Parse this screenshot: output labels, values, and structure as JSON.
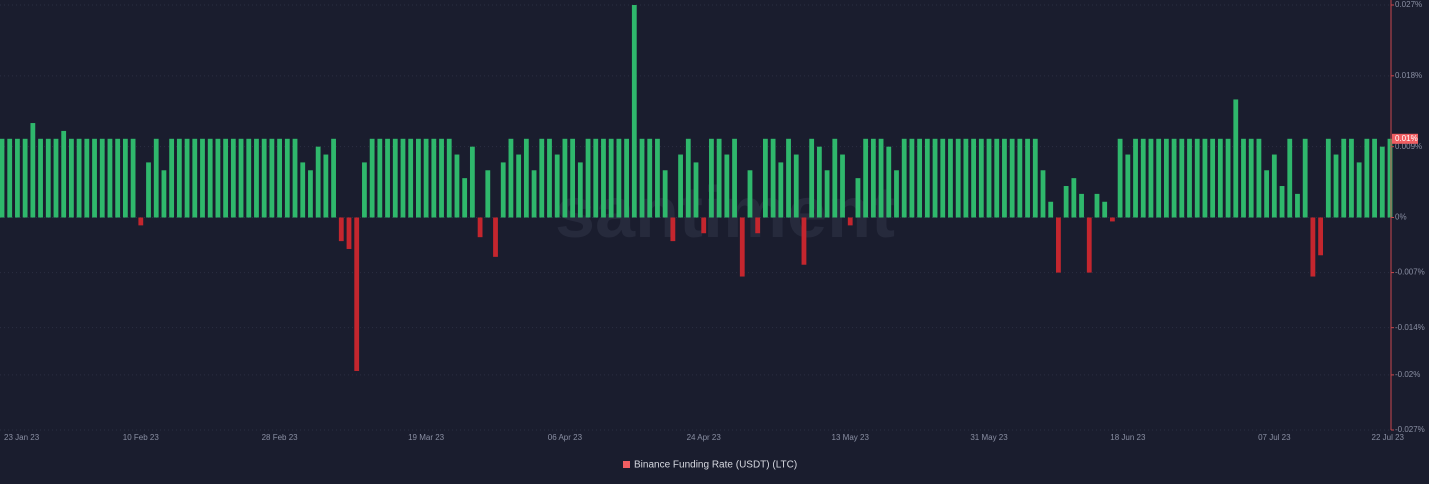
{
  "chart_data": {
    "type": "bar",
    "watermark": "santiment",
    "legend": "Binance Funding Rate (USDT) (LTC)",
    "legend_color": "#ef5e62",
    "positive_color": "#2fb86c",
    "negative_color": "#c4262e",
    "axis_color": "#c9484d",
    "grid": true,
    "current_value": {
      "value": 0.01,
      "label": "0.01%"
    },
    "ylim": [
      -0.027,
      0.027
    ],
    "yticks": [
      {
        "value": 0.027,
        "label": "0.027%"
      },
      {
        "value": 0.018,
        "label": "0.018%"
      },
      {
        "value": 0.009,
        "label": "0.009%"
      },
      {
        "value": 0,
        "label": "0%"
      },
      {
        "value": -0.007,
        "label": "-0.007%"
      },
      {
        "value": -0.014,
        "label": "-0.014%"
      },
      {
        "value": -0.02,
        "label": "-0.02%"
      },
      {
        "value": -0.027,
        "label": "-0.027%"
      }
    ],
    "categories": [
      "23 Jan 23",
      null,
      null,
      null,
      null,
      null,
      null,
      null,
      null,
      null,
      null,
      null,
      null,
      null,
      null,
      null,
      null,
      null,
      "10 Feb 23",
      null,
      null,
      null,
      null,
      null,
      null,
      null,
      null,
      null,
      null,
      null,
      null,
      null,
      null,
      null,
      null,
      null,
      "28 Feb 23",
      null,
      null,
      null,
      null,
      null,
      null,
      null,
      null,
      null,
      null,
      null,
      null,
      null,
      null,
      null,
      null,
      null,
      null,
      "19 Mar 23",
      null,
      null,
      null,
      null,
      null,
      null,
      null,
      null,
      null,
      null,
      null,
      null,
      null,
      null,
      null,
      null,
      null,
      "06 Apr 23",
      null,
      null,
      null,
      null,
      null,
      null,
      null,
      null,
      null,
      null,
      null,
      null,
      null,
      null,
      null,
      null,
      null,
      "24 Apr 23",
      null,
      null,
      null,
      null,
      null,
      null,
      null,
      null,
      null,
      null,
      null,
      null,
      null,
      null,
      null,
      null,
      null,
      null,
      "13 May 23",
      null,
      null,
      null,
      null,
      null,
      null,
      null,
      null,
      null,
      null,
      null,
      null,
      null,
      null,
      null,
      null,
      null,
      "31 May 23",
      null,
      null,
      null,
      null,
      null,
      null,
      null,
      null,
      null,
      null,
      null,
      null,
      null,
      null,
      null,
      null,
      null,
      "18 Jun 23",
      null,
      null,
      null,
      null,
      null,
      null,
      null,
      null,
      null,
      null,
      null,
      null,
      null,
      null,
      null,
      null,
      null,
      null,
      "07 Jul 23",
      null,
      null,
      null,
      null,
      null,
      null,
      null,
      null,
      null,
      null,
      null,
      null,
      null,
      null,
      "22 Jul 23"
    ],
    "values": [
      0.01,
      0.01,
      0.01,
      0.01,
      0.012,
      0.01,
      0.01,
      0.01,
      0.011,
      0.01,
      0.01,
      0.01,
      0.01,
      0.01,
      0.01,
      0.01,
      0.01,
      0.01,
      -0.001,
      0.007,
      0.01,
      0.006,
      0.01,
      0.01,
      0.01,
      0.01,
      0.01,
      0.01,
      0.01,
      0.01,
      0.01,
      0.01,
      0.01,
      0.01,
      0.01,
      0.01,
      0.01,
      0.01,
      0.01,
      0.007,
      0.006,
      0.009,
      0.008,
      0.01,
      -0.003,
      -0.004,
      -0.0195,
      0.007,
      0.01,
      0.01,
      0.01,
      0.01,
      0.01,
      0.01,
      0.01,
      0.01,
      0.01,
      0.01,
      0.01,
      0.008,
      0.005,
      0.009,
      -0.0025,
      0.006,
      -0.005,
      0.007,
      0.01,
      0.008,
      0.01,
      0.006,
      0.01,
      0.01,
      0.008,
      0.01,
      0.01,
      0.007,
      0.01,
      0.01,
      0.01,
      0.01,
      0.01,
      0.01,
      0.027,
      0.01,
      0.01,
      0.01,
      0.006,
      -0.003,
      0.008,
      0.01,
      0.007,
      -0.002,
      0.01,
      0.01,
      0.008,
      0.01,
      -0.0075,
      0.006,
      -0.002,
      0.01,
      0.01,
      0.007,
      0.01,
      0.008,
      -0.006,
      0.01,
      0.009,
      0.006,
      0.01,
      0.008,
      -0.001,
      0.005,
      0.01,
      0.01,
      0.01,
      0.009,
      0.006,
      0.01,
      0.01,
      0.01,
      0.01,
      0.01,
      0.01,
      0.01,
      0.01,
      0.01,
      0.01,
      0.01,
      0.01,
      0.01,
      0.01,
      0.01,
      0.01,
      0.01,
      0.01,
      0.006,
      0.002,
      -0.007,
      0.004,
      0.005,
      0.003,
      -0.007,
      0.003,
      0.002,
      -0.0005,
      0.01,
      0.008,
      0.01,
      0.01,
      0.01,
      0.01,
      0.01,
      0.01,
      0.01,
      0.01,
      0.01,
      0.01,
      0.01,
      0.01,
      0.01,
      0.015,
      0.01,
      0.01,
      0.01,
      0.006,
      0.008,
      0.004,
      0.01,
      0.003,
      0.01,
      -0.0075,
      -0.0048,
      0.01,
      0.008,
      0.01,
      0.01,
      0.007,
      0.01,
      0.01,
      0.009,
      0.01
    ]
  }
}
